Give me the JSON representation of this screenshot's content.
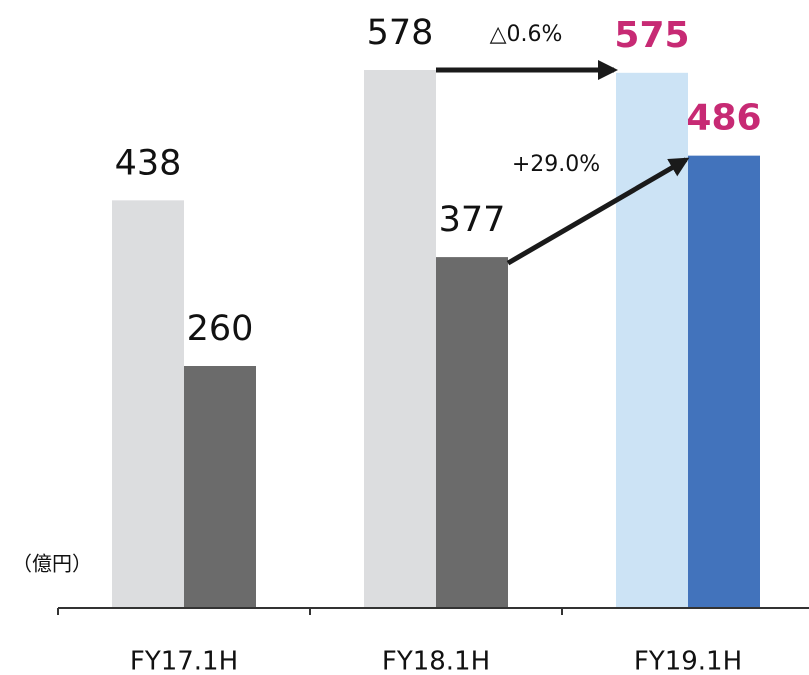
{
  "chart_data": {
    "type": "bar",
    "categories": [
      "FY17.1H",
      "FY18.1H",
      "FY19.1H"
    ],
    "series": [
      {
        "values": [
          438,
          578,
          575
        ],
        "colors": [
          "#dcdddf",
          "#dcdddf",
          "#cce3f5"
        ],
        "label_colors": [
          "#111111",
          "#111111",
          "#c72a74"
        ]
      },
      {
        "values": [
          260,
          377,
          486
        ],
        "colors": [
          "#6b6b6b",
          "#6b6b6b",
          "#4273bc"
        ],
        "label_colors": [
          "#111111",
          "#111111",
          "#c72a74"
        ]
      }
    ],
    "ylim": [
      0,
      650
    ],
    "unit_label": "（億円）",
    "annotations": [
      "△0.6%",
      "+29.0%"
    ]
  }
}
